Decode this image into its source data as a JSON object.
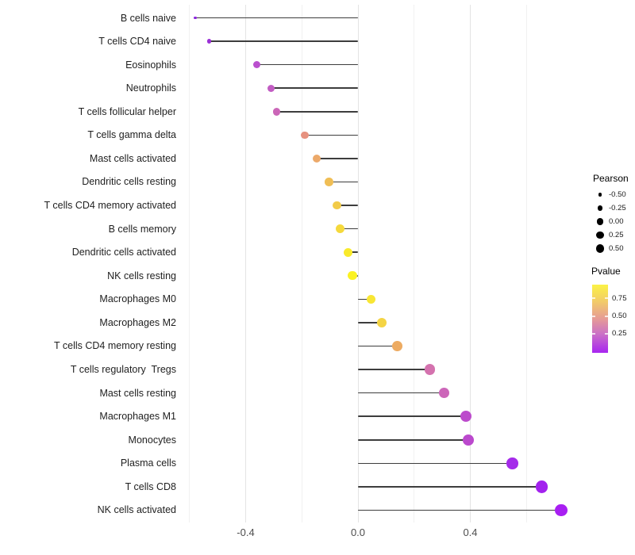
{
  "figure": {
    "background": "#ffffff"
  },
  "chart_data": {
    "type": "scatter",
    "variant": "horizontal-lollipop",
    "title": "",
    "xlabel": "",
    "ylabel": "",
    "grid": "on",
    "legend_position": "right",
    "baseline": 0,
    "xlim": [
      -0.65,
      0.79
    ],
    "x_ticks": [
      -0.4,
      0.0,
      0.4
    ],
    "x_tick_labels": [
      "-0.4",
      "0.0",
      "0.4"
    ],
    "x_minor_gridlines": [
      -0.6,
      -0.2,
      0.2,
      0.6
    ],
    "stem_color": "#3d3d3d",
    "rows": [
      {
        "label": "B cells naive",
        "pearson": -0.58,
        "pvalue_approx": 0.01,
        "color": "#8B26DC",
        "radius": 1.9
      },
      {
        "label": "T cells CD4 naive",
        "pearson": -0.53,
        "pvalue_approx": 0.04,
        "color": "#9A30D6",
        "radius": 2.7
      },
      {
        "label": "Eosinophils",
        "pearson": -0.36,
        "pvalue_approx": 0.15,
        "color": "#BA50CE",
        "radius": 4.5
      },
      {
        "label": "Neutrophils",
        "pearson": -0.31,
        "pvalue_approx": 0.2,
        "color": "#C25CC3",
        "radius": 4.6
      },
      {
        "label": "T cells follicular helper",
        "pearson": -0.29,
        "pvalue_approx": 0.25,
        "color": "#CB66B8",
        "radius": 4.8
      },
      {
        "label": "T cells gamma delta",
        "pearson": -0.19,
        "pvalue_approx": 0.45,
        "color": "#E6917F",
        "radius": 4.8
      },
      {
        "label": "Mast cells activated",
        "pearson": -0.146,
        "pvalue_approx": 0.55,
        "color": "#ECA96A",
        "radius": 5.1
      },
      {
        "label": "Dendritic cells resting",
        "pearson": -0.104,
        "pvalue_approx": 0.65,
        "color": "#F0BE55",
        "radius": 5.3
      },
      {
        "label": "T cells CD4 memory activated",
        "pearson": -0.075,
        "pvalue_approx": 0.7,
        "color": "#F2CB48",
        "radius": 5.4
      },
      {
        "label": "B cells memory",
        "pearson": -0.065,
        "pvalue_approx": 0.76,
        "color": "#F5D93C",
        "radius": 5.5
      },
      {
        "label": "Dendritic cells activated",
        "pearson": -0.035,
        "pvalue_approx": 0.85,
        "color": "#F9EA2B",
        "radius": 5.6
      },
      {
        "label": "NK cells resting",
        "pearson": -0.02,
        "pvalue_approx": 0.9,
        "color": "#FBF222",
        "radius": 5.7
      },
      {
        "label": "Macrophages M0",
        "pearson": 0.047,
        "pvalue_approx": 0.82,
        "color": "#F8E634",
        "radius": 5.8
      },
      {
        "label": "Macrophages M2",
        "pearson": 0.084,
        "pvalue_approx": 0.73,
        "color": "#F4D444",
        "radius": 6.0
      },
      {
        "label": "T cells CD4 memory resting",
        "pearson": 0.14,
        "pvalue_approx": 0.56,
        "color": "#EDAB62",
        "radius": 6.4
      },
      {
        "label": "T cells regulatory  Tregs",
        "pearson": 0.256,
        "pvalue_approx": 0.3,
        "color": "#D472AE",
        "radius": 6.7
      },
      {
        "label": "Mast cells resting",
        "pearson": 0.306,
        "pvalue_approx": 0.26,
        "color": "#CC66B9",
        "radius": 6.4
      },
      {
        "label": "Macrophages M1",
        "pearson": 0.384,
        "pvalue_approx": 0.17,
        "color": "#BC4BCC",
        "radius": 7.0
      },
      {
        "label": "Monocytes",
        "pearson": 0.392,
        "pvalue_approx": 0.16,
        "color": "#BB49CD",
        "radius": 6.9
      },
      {
        "label": "Plasma cells",
        "pearson": 0.55,
        "pvalue_approx": 0.06,
        "color": "#A52BEA",
        "radius": 7.3
      },
      {
        "label": "T cells CD8",
        "pearson": 0.655,
        "pvalue_approx": 0.03,
        "color": "#A322EE",
        "radius": 7.6
      },
      {
        "label": "NK cells activated",
        "pearson": 0.724,
        "pvalue_approx": 0.02,
        "color": "#A81FF2",
        "radius": 7.8
      }
    ]
  },
  "legend_pearson": {
    "title": "Pearson",
    "dot_color": "#000000",
    "entries": [
      {
        "label": "-0.50",
        "radius": 2.3
      },
      {
        "label": "-0.25",
        "radius": 3.3
      },
      {
        "label": "0.00",
        "radius": 4.3
      },
      {
        "label": "0.25",
        "radius": 4.8
      },
      {
        "label": "0.50",
        "radius": 5.4
      }
    ]
  },
  "legend_pvalue": {
    "title": "Pvalue",
    "tick_labels": [
      "0.75",
      "0.50",
      "0.25"
    ],
    "tick_positions_pct": [
      20,
      46.5,
      72
    ],
    "gradient_stops": [
      {
        "pct": 0,
        "color": "#FBF245"
      },
      {
        "pct": 25,
        "color": "#F2CB69"
      },
      {
        "pct": 50,
        "color": "#E69B96"
      },
      {
        "pct": 72,
        "color": "#CB72C6"
      },
      {
        "pct": 100,
        "color": "#A825F0"
      }
    ]
  }
}
